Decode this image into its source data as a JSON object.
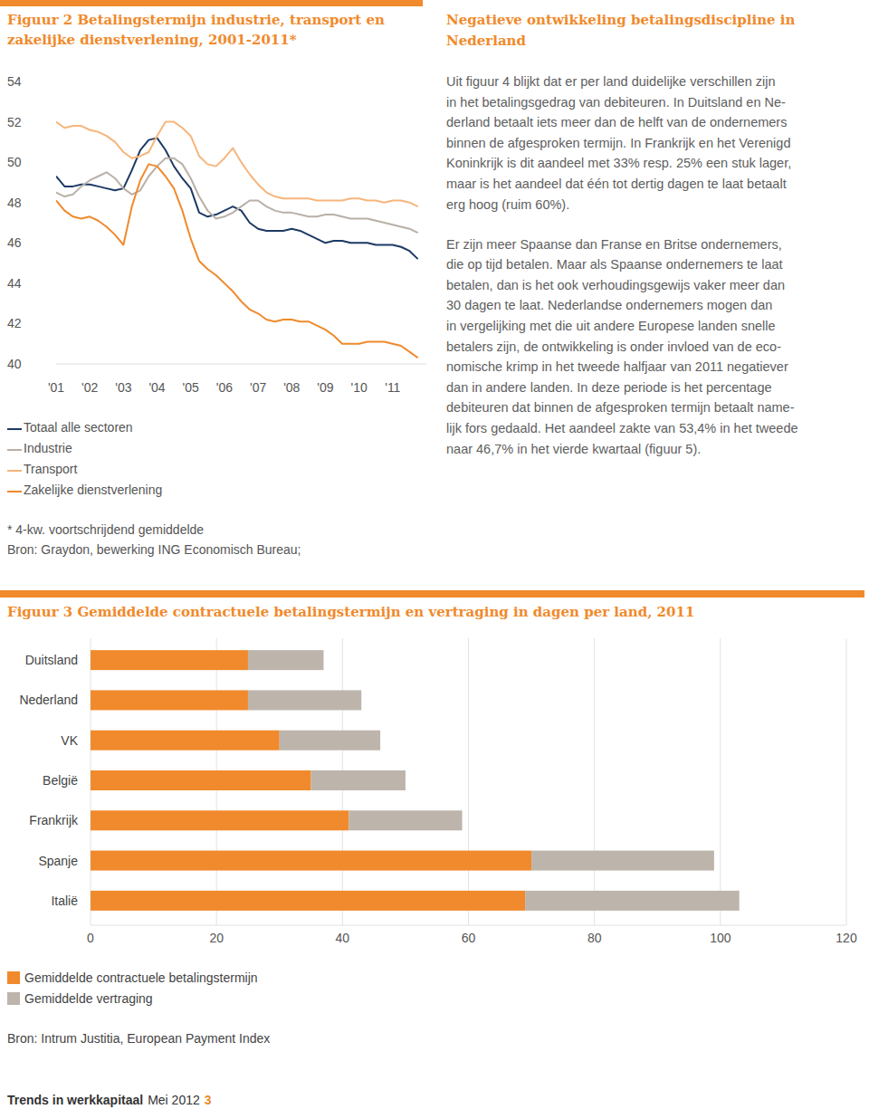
{
  "chart_data": [
    {
      "type": "line",
      "title": "Figuur 2 Betalingstermijn industrie, transport en zakelijke dienstverlening, 2001-2011*",
      "x": [
        2001,
        2001.25,
        2001.5,
        2001.75,
        2002,
        2002.25,
        2002.5,
        2002.75,
        2003,
        2003.25,
        2003.5,
        2003.75,
        2004,
        2004.25,
        2004.5,
        2004.75,
        2005,
        2005.25,
        2005.5,
        2005.75,
        2006,
        2006.25,
        2006.5,
        2006.75,
        2007,
        2007.25,
        2007.5,
        2007.75,
        2008,
        2008.25,
        2008.5,
        2008.75,
        2009,
        2009.25,
        2009.5,
        2009.75,
        2010,
        2010.25,
        2010.5,
        2010.75,
        2011,
        2011.25,
        2011.5,
        2011.75
      ],
      "xlim": [
        2001,
        2012
      ],
      "xticks": [
        {
          "value": 2001,
          "label": "'01"
        },
        {
          "value": 2002,
          "label": "'02"
        },
        {
          "value": 2003,
          "label": "'03"
        },
        {
          "value": 2004,
          "label": "'04"
        },
        {
          "value": 2005,
          "label": "'05"
        },
        {
          "value": 2006,
          "label": "'06"
        },
        {
          "value": 2007,
          "label": "'07"
        },
        {
          "value": 2008,
          "label": "'08"
        },
        {
          "value": 2009,
          "label": "'09"
        },
        {
          "value": 2010,
          "label": "'10"
        },
        {
          "value": 2011,
          "label": "'11"
        }
      ],
      "ylim": [
        40,
        54
      ],
      "yticks": [
        40,
        42,
        44,
        46,
        48,
        50,
        52,
        54
      ],
      "grid": false,
      "legend": "bottom",
      "series": [
        {
          "name": "Totaal alle sectoren",
          "color": "#1c3a64",
          "values": [
            49.3,
            48.8,
            48.8,
            48.9,
            48.9,
            48.8,
            48.7,
            48.6,
            48.7,
            49.6,
            50.6,
            51.1,
            51.2,
            50.6,
            49.8,
            49.2,
            48.7,
            47.5,
            47.3,
            47.4,
            47.6,
            47.8,
            47.6,
            47.0,
            46.7,
            46.6,
            46.6,
            46.6,
            46.7,
            46.6,
            46.4,
            46.2,
            46.0,
            46.1,
            46.1,
            46.0,
            46.0,
            46.0,
            45.9,
            45.9,
            45.9,
            45.8,
            45.6,
            45.2
          ]
        },
        {
          "name": "Industrie",
          "color": "#b9b0a7",
          "values": [
            48.5,
            48.3,
            48.4,
            48.8,
            49.1,
            49.3,
            49.5,
            49.2,
            48.7,
            48.4,
            48.6,
            49.3,
            49.8,
            50.2,
            50.2,
            49.9,
            49.2,
            48.3,
            47.6,
            47.2,
            47.3,
            47.5,
            47.8,
            48.1,
            48.1,
            47.8,
            47.6,
            47.5,
            47.5,
            47.4,
            47.3,
            47.3,
            47.4,
            47.4,
            47.3,
            47.2,
            47.2,
            47.2,
            47.1,
            47.0,
            46.9,
            46.8,
            46.7,
            46.5
          ]
        },
        {
          "name": "Transport",
          "color": "#f6b57c",
          "values": [
            52.0,
            51.7,
            51.8,
            51.8,
            51.6,
            51.5,
            51.3,
            51.0,
            50.5,
            50.2,
            50.3,
            50.5,
            51.3,
            52.0,
            52.0,
            51.7,
            51.3,
            50.3,
            49.9,
            49.8,
            50.2,
            50.7,
            50.0,
            49.4,
            48.9,
            48.5,
            48.3,
            48.2,
            48.2,
            48.2,
            48.2,
            48.1,
            48.1,
            48.1,
            48.1,
            48.2,
            48.2,
            48.1,
            48.1,
            48.0,
            48.1,
            48.1,
            48.0,
            47.8
          ]
        },
        {
          "name": "Zakelijke dienstverlening",
          "color": "#ef8a2d",
          "values": [
            48.1,
            47.6,
            47.3,
            47.2,
            47.3,
            47.1,
            46.8,
            46.4,
            45.9,
            47.8,
            49.1,
            49.9,
            49.8,
            49.3,
            48.7,
            47.6,
            46.2,
            45.1,
            44.7,
            44.4,
            44.0,
            43.6,
            43.1,
            42.7,
            42.5,
            42.2,
            42.1,
            42.2,
            42.2,
            42.1,
            42.1,
            41.9,
            41.7,
            41.4,
            41.0,
            41.0,
            41.0,
            41.1,
            41.1,
            41.1,
            41.0,
            40.9,
            40.6,
            40.3
          ]
        }
      ],
      "footnote": "* 4-kw. voortschrijdend gemiddelde",
      "source": "Bron: Graydon, bewerking ING Economisch Bureau;"
    },
    {
      "type": "bar",
      "title": "Figuur 3 Gemiddelde contractuele betalingstermijn en vertraging in dagen per land, 2011",
      "orientation": "horizontal",
      "stacked": true,
      "categories": [
        "Duitsland",
        "Nederland",
        "VK",
        "België",
        "Frankrijk",
        "Spanje",
        "Italië"
      ],
      "xlim": [
        0,
        120
      ],
      "xticks": [
        0,
        20,
        40,
        60,
        80,
        100,
        120
      ],
      "grid": true,
      "legend": "bottom",
      "series": [
        {
          "name": "Gemiddelde contractuele betalingstermijn",
          "color": "#f08a2c",
          "values": [
            25,
            25,
            30,
            35,
            41,
            70,
            69
          ]
        },
        {
          "name": "Gemiddelde vertraging",
          "color": "#bdb4ab",
          "values": [
            12,
            18,
            16,
            15,
            18,
            29,
            34
          ]
        }
      ],
      "source": "Bron: Intrum Justitia, European Payment Index"
    }
  ],
  "article": {
    "heading": "Negatieve ontwikkeling betalingsdiscipline in Nederland",
    "paragraphs": [
      [
        "Uit figuur 4 blijkt dat er per land duidelijke verschillen zijn",
        "in het betalingsgedrag van debiteuren. In Duitsland en Ne-",
        "derland betaalt iets meer dan de helft van de ondernemers",
        "binnen de afgesproken termijn. In Frankrijk en het Verenigd",
        "Koninkrijk is dit aandeel met 33% resp. 25% een stuk lager,",
        "maar is het aandeel dat één tot dertig dagen te laat betaalt",
        "erg hoog (ruim 60%)."
      ],
      [
        "Er zijn meer Spaanse dan Franse en Britse ondernemers,",
        "die op tijd betalen. Maar als Spaanse ondernemers te laat",
        "betalen, dan is het ook verhoudingsgewijs vaker meer dan",
        "30 dagen te laat. Nederlandse ondernemers mogen dan",
        "in vergelijking met die uit andere Europese landen snelle",
        "betalers zijn, de ontwikkeling is onder invloed van de eco-",
        "nomische krimp in het tweede halfjaar van 2011 negatiever",
        "dan in andere landen. In deze periode is het percentage",
        "debiteuren dat binnen de afgesproken termijn betaalt name-",
        "lijk fors gedaald. Het aandeel zakte van 53,4% in het tweede",
        "naar 46,7% in het vierde kwartaal (figuur 5)."
      ]
    ]
  },
  "footer": {
    "publication": "Trends in werkkapitaal",
    "date": "Mei 2012",
    "page": "3"
  }
}
